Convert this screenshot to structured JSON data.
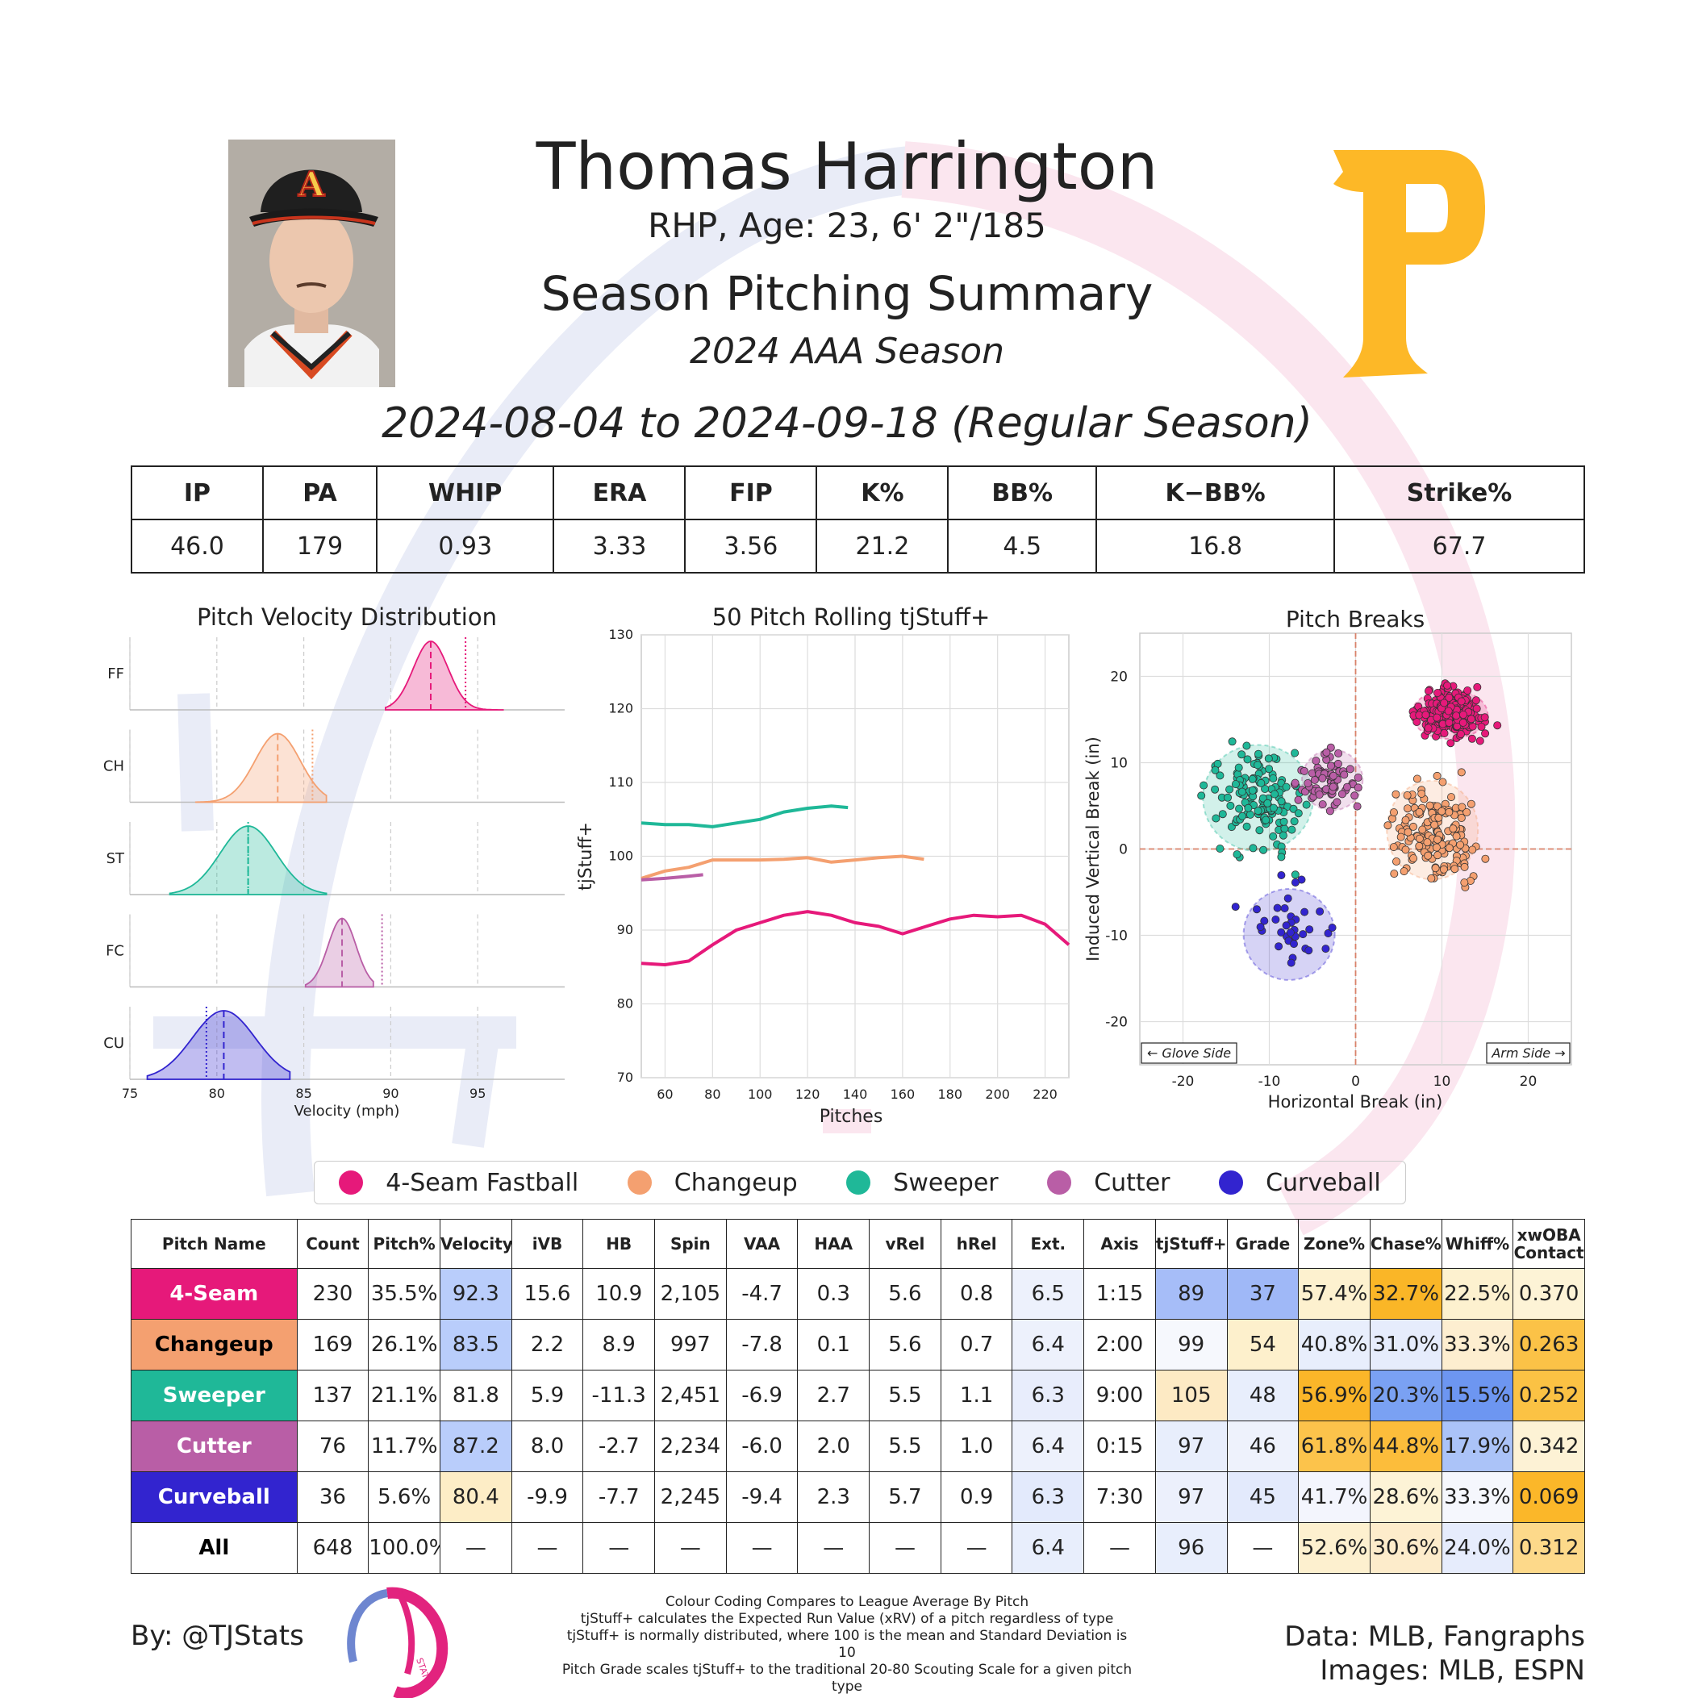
{
  "header": {
    "player_name": "Thomas Harrington",
    "bio": "RHP, Age: 23, 6' 2\"/185",
    "title": "Season Pitching Summary",
    "season": "2024 AAA Season",
    "date_range": "2024-08-04 to 2024-09-18 (Regular Season)",
    "team_logo_letter": "P",
    "cap_letter": "A"
  },
  "colors": {
    "FF": "#e6197a",
    "CH": "#f4a070",
    "ST": "#1fb898",
    "FC": "#b95ea6",
    "CU": "#3224cf",
    "text": "#222222",
    "team_gold": "#fdb827"
  },
  "summary_stats": {
    "headers": [
      "IP",
      "PA",
      "WHIP",
      "ERA",
      "FIP",
      "K%",
      "BB%",
      "K−BB%",
      "Strike%"
    ],
    "values": [
      "46.0",
      "179",
      "0.93",
      "3.33",
      "3.56",
      "21.2",
      "4.5",
      "16.8",
      "67.7"
    ]
  },
  "legend": [
    {
      "label": "4-Seam Fastball",
      "color": "#e6197a"
    },
    {
      "label": "Changeup",
      "color": "#f4a070"
    },
    {
      "label": "Sweeper",
      "color": "#1fb898"
    },
    {
      "label": "Cutter",
      "color": "#b95ea6"
    },
    {
      "label": "Curveball",
      "color": "#3224cf"
    }
  ],
  "chart_data": [
    {
      "type": "area",
      "title": "Pitch Velocity Distribution",
      "xlabel": "Velocity (mph)",
      "xlim": [
        75,
        100
      ],
      "xticks": [
        75,
        80,
        85,
        90,
        95
      ],
      "series": [
        {
          "name": "FF",
          "mean": 92.3,
          "sd": 1.0,
          "min": 89.7,
          "max": 96.5,
          "league_avg": 94.3
        },
        {
          "name": "CH",
          "mean": 83.5,
          "sd": 1.3,
          "min": 78.8,
          "max": 86.3,
          "league_avg": 85.5
        },
        {
          "name": "ST",
          "mean": 81.8,
          "sd": 1.6,
          "min": 77.3,
          "max": 86.3,
          "league_avg": 81.8
        },
        {
          "name": "FC",
          "mean": 87.2,
          "sd": 0.8,
          "min": 85.1,
          "max": 89.0,
          "league_avg": 89.5
        },
        {
          "name": "CU",
          "mean": 80.4,
          "sd": 1.8,
          "min": 76.0,
          "max": 84.2,
          "league_avg": 79.4
        }
      ]
    },
    {
      "type": "line",
      "title": "50 Pitch Rolling tjStuff+",
      "xlabel": "Pitches",
      "ylabel": "tjStuff+",
      "xlim": [
        50,
        230
      ],
      "ylim": [
        70,
        130
      ],
      "xticks": [
        60,
        80,
        100,
        120,
        140,
        160,
        180,
        200,
        220
      ],
      "yticks": [
        70,
        80,
        90,
        100,
        110,
        120,
        130
      ],
      "series": [
        {
          "name": "4-Seam Fastball",
          "x": [
            50,
            60,
            70,
            80,
            90,
            100,
            110,
            120,
            130,
            140,
            150,
            160,
            170,
            180,
            190,
            200,
            210,
            220,
            230
          ],
          "y": [
            85.5,
            85.3,
            85.8,
            88,
            90,
            91,
            92,
            92.5,
            92,
            91,
            90.5,
            89.5,
            90.5,
            91.5,
            92,
            91.8,
            92,
            90.8,
            88
          ]
        },
        {
          "name": "Changeup",
          "x": [
            50,
            60,
            70,
            80,
            90,
            100,
            110,
            120,
            130,
            140,
            150,
            160,
            169
          ],
          "y": [
            97,
            98,
            98.5,
            99.5,
            99.5,
            99.5,
            99.6,
            99.8,
            99.2,
            99.5,
            99.8,
            100,
            99.6
          ]
        },
        {
          "name": "Sweeper",
          "x": [
            50,
            60,
            70,
            80,
            90,
            100,
            110,
            120,
            130,
            137
          ],
          "y": [
            104.5,
            104.3,
            104.3,
            104,
            104.5,
            105,
            106,
            106.5,
            106.8,
            106.6
          ]
        },
        {
          "name": "Cutter",
          "x": [
            50,
            60,
            70,
            76
          ],
          "y": [
            96.8,
            97,
            97.3,
            97.5
          ]
        }
      ]
    },
    {
      "type": "scatter",
      "title": "Pitch Breaks",
      "xlabel": "Horizontal Break (in)",
      "ylabel": "Induced Vertical Break (in)",
      "xlim": [
        -25,
        25
      ],
      "ylim": [
        -25,
        25
      ],
      "xticks": [
        -20,
        -10,
        0,
        10,
        20
      ],
      "yticks": [
        -20,
        -10,
        0,
        10,
        20
      ],
      "annotations": [
        "← Glove Side",
        "Arm Side →"
      ],
      "clusters": [
        {
          "name": "4-Seam Fastball",
          "count": 230,
          "hb": 10.9,
          "ivb": 15.6,
          "sd_hb": 2.0,
          "sd_ivb": 1.3
        },
        {
          "name": "Changeup",
          "count": 169,
          "hb": 8.9,
          "ivb": 2.2,
          "sd_hb": 2.4,
          "sd_ivb": 2.6
        },
        {
          "name": "Sweeper",
          "count": 137,
          "hb": -11.3,
          "ivb": 5.9,
          "sd_hb": 2.9,
          "sd_ivb": 2.8
        },
        {
          "name": "Cutter",
          "count": 76,
          "hb": -2.7,
          "ivb": 8.0,
          "sd_hb": 1.6,
          "sd_ivb": 1.6
        },
        {
          "name": "Curveball",
          "count": 36,
          "hb": -7.7,
          "ivb": -9.9,
          "sd_hb": 2.4,
          "sd_ivb": 2.4
        }
      ]
    }
  ],
  "pitch_table": {
    "headers": [
      "Pitch Name",
      "Count",
      "Pitch%",
      "Velocity",
      "iVB",
      "HB",
      "Spin",
      "VAA",
      "HAA",
      "vRel",
      "hRel",
      "Ext.",
      "Axis",
      "tjStuff+",
      "Grade",
      "Zone%",
      "Chase%",
      "Whiff%",
      "xwOBA Contact"
    ],
    "rows": [
      {
        "name": "4-Seam",
        "name_color": "#e6197a",
        "name_text": "#ffffff",
        "cells": [
          "230",
          "35.5%",
          "92.3",
          "15.6",
          "10.9",
          "2,105",
          "-4.7",
          "0.3",
          "5.6",
          "0.8",
          "6.5",
          "1:15",
          "89",
          "37",
          "57.4%",
          "32.7%",
          "22.5%",
          "0.370"
        ],
        "fills": [
          "",
          "",
          "#b9cdfb",
          "",
          "",
          "",
          "",
          "",
          "",
          "",
          "#edf1fc",
          "",
          "#a6bdf8",
          "#9fb8f7",
          "#fdf1cf",
          "#fab627",
          "#fdf1cf",
          "#fdf3d6"
        ]
      },
      {
        "name": "Changeup",
        "name_color": "#f4a070",
        "name_text": "#000000",
        "cells": [
          "169",
          "26.1%",
          "83.5",
          "2.2",
          "8.9",
          "997",
          "-7.8",
          "0.1",
          "5.6",
          "0.7",
          "6.4",
          "2:00",
          "99",
          "54",
          "40.8%",
          "31.0%",
          "33.3%",
          "0.263"
        ],
        "fills": [
          "",
          "",
          "#b9cdfb",
          "",
          "",
          "",
          "",
          "",
          "",
          "",
          "#edf1fc",
          "",
          "#f6f8fd",
          "#fdf0cc",
          "#e8eefc",
          "#e6ecfc",
          "#fdeed0",
          "#fbc247"
        ]
      },
      {
        "name": "Sweeper",
        "name_color": "#1fb898",
        "name_text": "#ffffff",
        "cells": [
          "137",
          "21.1%",
          "81.8",
          "5.9",
          "-11.3",
          "2,451",
          "-6.9",
          "2.7",
          "5.5",
          "1.1",
          "6.3",
          "9:00",
          "105",
          "48",
          "56.9%",
          "20.3%",
          "15.5%",
          "0.252"
        ],
        "fills": [
          "",
          "",
          "",
          "",
          "",
          "",
          "",
          "",
          "",
          "",
          "#e8edfc",
          "",
          "#fdeac4",
          "#e8eefc",
          "#fbb629",
          "#7aa1f3",
          "#6d96f1",
          "#fbc244"
        ]
      },
      {
        "name": "Cutter",
        "name_color": "#b95ea6",
        "name_text": "#ffffff",
        "cells": [
          "76",
          "11.7%",
          "87.2",
          "8.0",
          "-2.7",
          "2,234",
          "-6.0",
          "2.0",
          "5.5",
          "1.0",
          "6.4",
          "0:15",
          "97",
          "46",
          "61.8%",
          "44.8%",
          "17.9%",
          "0.342"
        ],
        "fills": [
          "",
          "",
          "#b9cdfb",
          "",
          "",
          "",
          "",
          "",
          "",
          "",
          "#edf1fc",
          "",
          "#e8eefc",
          "#eef2fc",
          "#fcc34b",
          "#fcbd3b",
          "#abc3f8",
          "#fdf2d5"
        ]
      },
      {
        "name": "Curveball",
        "name_color": "#3224cf",
        "name_text": "#ffffff",
        "cells": [
          "36",
          "5.6%",
          "80.4",
          "-9.9",
          "-7.7",
          "2,245",
          "-9.4",
          "2.3",
          "5.7",
          "0.9",
          "6.3",
          "7:30",
          "97",
          "45",
          "41.7%",
          "28.6%",
          "33.3%",
          "0.069"
        ],
        "fills": [
          "",
          "",
          "#fdedc6",
          "",
          "",
          "",
          "",
          "",
          "",
          "",
          "#e3eafc",
          "",
          "#ecf0fc",
          "#e3eafc",
          "#f3f5fd",
          "#fdf3d6",
          "#f5f7fd",
          "#fbb729"
        ]
      },
      {
        "name": "All",
        "name_color": "#ffffff",
        "name_text": "#000000",
        "cells": [
          "648",
          "100.0%",
          "—",
          "—",
          "—",
          "—",
          "—",
          "—",
          "—",
          "—",
          "6.4",
          "—",
          "96",
          "—",
          "52.6%",
          "30.6%",
          "24.0%",
          "0.312"
        ],
        "fills": [
          "",
          "",
          "",
          "",
          "",
          "",
          "",
          "",
          "",
          "",
          "#e8eefc",
          "",
          "#e8eefc",
          "",
          "#fdf0cf",
          "#fdeccb",
          "#e6ecfc",
          "#fdd98a"
        ]
      }
    ]
  },
  "footer": {
    "by": "By: @TJStats",
    "data_source": "Data: MLB, Fangraphs",
    "images_source": "Images: MLB, ESPN",
    "notes": [
      "Colour Coding Compares to League Average By Pitch",
      "tjStuff+ calculates the Expected Run Value (xRV) of a pitch regardless of type",
      "tjStuff+ is normally distributed, where 100 is the mean and Standard Deviation is 10",
      "Pitch Grade scales tjStuff+ to the traditional 20-80 Scouting Scale for a given pitch type"
    ],
    "logo_text": "STATS"
  }
}
